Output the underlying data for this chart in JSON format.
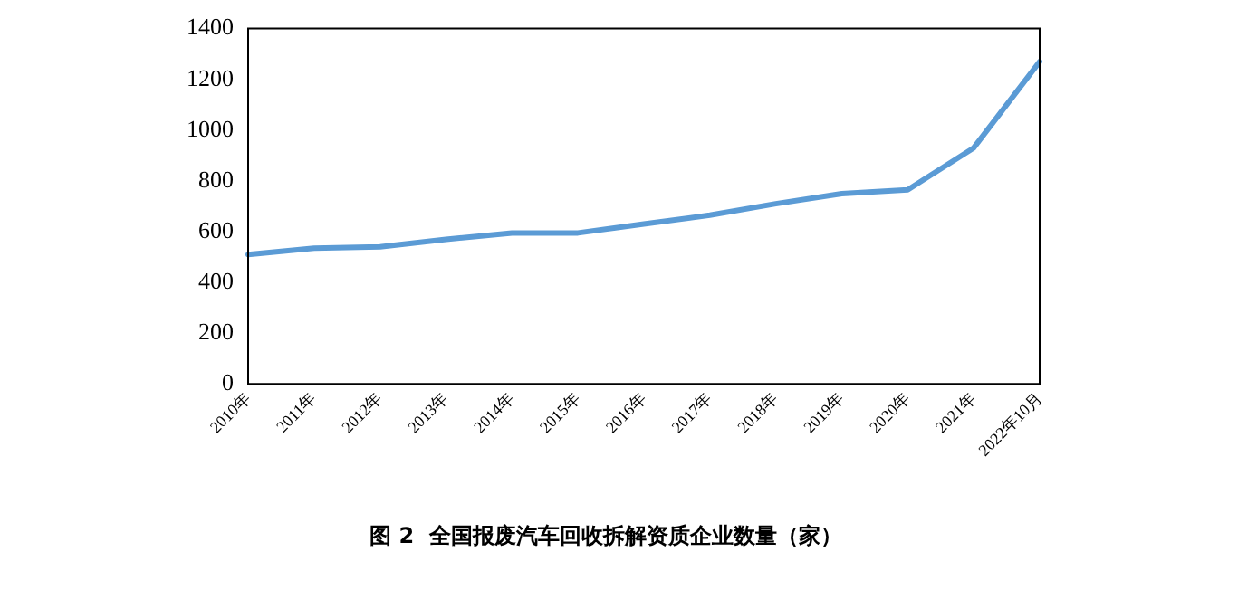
{
  "chart_data": {
    "type": "line",
    "title": "图 2  全国报废汽车回收拆解资质企业数量（家）",
    "categories": [
      "2010年",
      "2011年",
      "2012年",
      "2013年",
      "2014年",
      "2015年",
      "2016年",
      "2017年",
      "2018年",
      "2019年",
      "2020年",
      "2021年",
      "2022年10月"
    ],
    "series": [
      {
        "color": "#5b9bd5",
        "values": [
          510,
          535,
          540,
          570,
          595,
          595,
          630,
          665,
          710,
          750,
          765,
          930,
          1270
        ]
      }
    ],
    "ylim": [
      0,
      1400
    ],
    "yticks": [
      0,
      200,
      400,
      600,
      800,
      1000,
      1200,
      1400
    ],
    "grid": false,
    "legend": false,
    "marker": "none",
    "line_style": "solid"
  }
}
